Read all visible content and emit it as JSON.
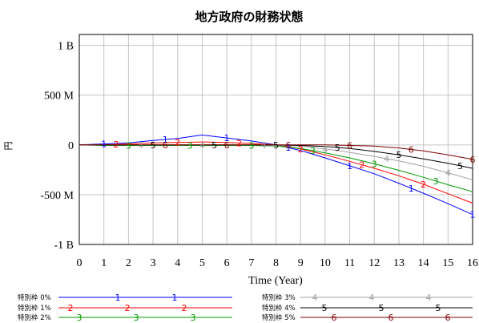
{
  "chart_data": {
    "type": "line",
    "title": "地方政府の財務状態",
    "xlabel": "Time (Year)",
    "ylabel": "円",
    "x": [
      0,
      1,
      2,
      3,
      4,
      5,
      6,
      7,
      8,
      9,
      10,
      11,
      12,
      13,
      14,
      15,
      16
    ],
    "xtick_labels": [
      "0",
      "1",
      "2",
      "3",
      "4",
      "5",
      "6",
      "7",
      "8",
      "9",
      "10",
      "11",
      "12",
      "13",
      "14",
      "15",
      "16"
    ],
    "yticks": [
      1000000000,
      500000000,
      0,
      -500000000,
      -1000000000
    ],
    "ytick_labels": [
      "1 B",
      "500 M",
      "0",
      "-500 M",
      "-1 B"
    ],
    "xlim": [
      0,
      16
    ],
    "ylim": [
      -1000000000,
      1110000000
    ],
    "grid": true,
    "legend": "bottom",
    "series": [
      {
        "name": "特別枠 0%",
        "marker": "1",
        "color": "#0000ff",
        "values": [
          0,
          10000000,
          20000000,
          45000000,
          65000000,
          100000000,
          70000000,
          40000000,
          0,
          -55000000,
          -130000000,
          -210000000,
          -290000000,
          -385000000,
          -485000000,
          -590000000,
          -700000000
        ]
      },
      {
        "name": "特別枠 1%",
        "marker": "2",
        "color": "#ff0000",
        "values": [
          0,
          0,
          10000000,
          20000000,
          25000000,
          30000000,
          25000000,
          15000000,
          0,
          -40000000,
          -100000000,
          -165000000,
          -235000000,
          -310000000,
          -395000000,
          -490000000,
          -585000000
        ]
      },
      {
        "name": "特別枠 2%",
        "marker": "3",
        "color": "#009900",
        "values": [
          0,
          -5000000,
          -5000000,
          -5000000,
          -5000000,
          -5000000,
          -5000000,
          -5000000,
          -10000000,
          -35000000,
          -80000000,
          -130000000,
          -190000000,
          -255000000,
          -325000000,
          -400000000,
          -470000000
        ]
      },
      {
        "name": "特別枠 3%",
        "marker": "4",
        "color": "#a0a0a0",
        "values": [
          0,
          0,
          0,
          0,
          0,
          0,
          0,
          0,
          -5000000,
          -10000000,
          -40000000,
          -75000000,
          -115000000,
          -160000000,
          -215000000,
          -280000000,
          -350000000
        ]
      },
      {
        "name": "特別枠 4%",
        "marker": "5",
        "color": "#000000",
        "values": [
          0,
          0,
          0,
          0,
          0,
          0,
          0,
          0,
          0,
          -5000000,
          -15000000,
          -35000000,
          -65000000,
          -100000000,
          -140000000,
          -185000000,
          -235000000
        ]
      },
      {
        "name": "特別枠 5%",
        "marker": "6",
        "color": "#800000",
        "values": [
          0,
          0,
          0,
          0,
          0,
          0,
          0,
          0,
          0,
          0,
          0,
          -5000000,
          -12000000,
          -30000000,
          -60000000,
          -100000000,
          -145000000
        ]
      }
    ]
  }
}
